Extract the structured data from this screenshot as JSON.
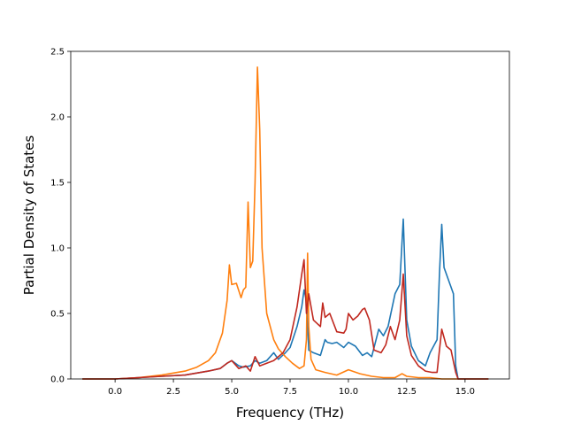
{
  "chart_data": {
    "type": "line",
    "title": "",
    "xlabel": "Frequency (THz)",
    "ylabel": "Partial Density of States",
    "xlim": [
      -1.9,
      16.9
    ],
    "ylim": [
      0.0,
      2.5
    ],
    "xticks": [
      0.0,
      2.5,
      5.0,
      7.5,
      10.0,
      12.5,
      15.0
    ],
    "xtick_labels": [
      "0.0",
      "2.5",
      "5.0",
      "7.5",
      "10.0",
      "12.5",
      "15.0"
    ],
    "yticks": [
      0.0,
      0.5,
      1.0,
      1.5,
      2.0,
      2.5
    ],
    "ytick_labels": [
      "0.0",
      "0.5",
      "1.0",
      "1.5",
      "2.0",
      "2.5"
    ],
    "grid": false,
    "legend": "none",
    "series": [
      {
        "color": "#1f77b4",
        "x": [
          -1.4,
          0.0,
          1.0,
          2.0,
          3.0,
          4.0,
          4.5,
          4.8,
          5.0,
          5.3,
          5.5,
          5.8,
          6.0,
          6.2,
          6.5,
          6.8,
          7.0,
          7.3,
          7.5,
          7.8,
          8.0,
          8.1,
          8.2,
          8.3,
          8.5,
          8.8,
          9.0,
          9.1,
          9.3,
          9.5,
          9.8,
          10.0,
          10.3,
          10.6,
          10.8,
          11.0,
          11.3,
          11.5,
          11.7,
          12.0,
          12.2,
          12.35,
          12.5,
          12.7,
          13.0,
          13.3,
          13.5,
          13.8,
          13.9,
          14.0,
          14.1,
          14.3,
          14.5,
          14.6,
          14.7,
          16.0
        ],
        "y": [
          0.0,
          0.0,
          0.01,
          0.02,
          0.03,
          0.06,
          0.08,
          0.12,
          0.14,
          0.1,
          0.09,
          0.1,
          0.14,
          0.12,
          0.14,
          0.2,
          0.15,
          0.2,
          0.24,
          0.4,
          0.55,
          0.68,
          0.6,
          0.22,
          0.2,
          0.18,
          0.3,
          0.28,
          0.27,
          0.28,
          0.24,
          0.28,
          0.25,
          0.18,
          0.2,
          0.17,
          0.38,
          0.33,
          0.4,
          0.65,
          0.72,
          1.22,
          0.45,
          0.25,
          0.14,
          0.1,
          0.2,
          0.3,
          0.8,
          1.18,
          0.85,
          0.75,
          0.65,
          0.1,
          0.0,
          0.0
        ]
      },
      {
        "color": "#ff7f0e",
        "x": [
          -1.4,
          0.0,
          1.0,
          2.0,
          3.0,
          3.5,
          4.0,
          4.3,
          4.6,
          4.8,
          4.9,
          5.0,
          5.2,
          5.4,
          5.5,
          5.6,
          5.7,
          5.8,
          5.9,
          6.0,
          6.1,
          6.2,
          6.3,
          6.5,
          6.8,
          7.0,
          7.3,
          7.6,
          7.9,
          8.1,
          8.2,
          8.25,
          8.3,
          8.4,
          8.6,
          9.0,
          9.5,
          10.0,
          10.5,
          11.0,
          11.5,
          12.0,
          12.3,
          12.5,
          13.0,
          13.5,
          14.0,
          14.5,
          15.0,
          16.0
        ],
        "y": [
          0.0,
          0.0,
          0.01,
          0.03,
          0.06,
          0.09,
          0.14,
          0.2,
          0.35,
          0.6,
          0.87,
          0.72,
          0.73,
          0.62,
          0.68,
          0.7,
          1.35,
          0.85,
          0.9,
          1.5,
          2.38,
          1.9,
          1.0,
          0.5,
          0.3,
          0.23,
          0.17,
          0.12,
          0.08,
          0.1,
          0.3,
          0.96,
          0.4,
          0.15,
          0.07,
          0.05,
          0.03,
          0.07,
          0.04,
          0.02,
          0.01,
          0.01,
          0.04,
          0.02,
          0.01,
          0.01,
          0.0,
          0.0,
          0.0,
          0.0
        ]
      },
      {
        "color": "#c0281f",
        "x": [
          -1.4,
          0.0,
          1.0,
          2.0,
          3.0,
          4.0,
          4.5,
          4.8,
          5.0,
          5.3,
          5.6,
          5.8,
          6.0,
          6.2,
          6.5,
          6.8,
          7.2,
          7.5,
          7.8,
          8.0,
          8.1,
          8.2,
          8.3,
          8.5,
          8.8,
          8.9,
          9.0,
          9.2,
          9.5,
          9.8,
          9.9,
          10.0,
          10.2,
          10.4,
          10.6,
          10.7,
          10.9,
          11.1,
          11.4,
          11.6,
          11.8,
          12.0,
          12.2,
          12.35,
          12.5,
          12.7,
          13.0,
          13.3,
          13.6,
          13.8,
          14.0,
          14.2,
          14.4,
          14.6,
          14.7,
          16.0
        ],
        "y": [
          0.0,
          0.0,
          0.01,
          0.02,
          0.03,
          0.06,
          0.08,
          0.12,
          0.14,
          0.08,
          0.1,
          0.06,
          0.17,
          0.1,
          0.12,
          0.14,
          0.2,
          0.3,
          0.55,
          0.8,
          0.91,
          0.5,
          0.65,
          0.45,
          0.4,
          0.58,
          0.47,
          0.5,
          0.36,
          0.35,
          0.38,
          0.5,
          0.45,
          0.48,
          0.53,
          0.54,
          0.45,
          0.22,
          0.2,
          0.26,
          0.4,
          0.3,
          0.45,
          0.8,
          0.33,
          0.18,
          0.1,
          0.06,
          0.05,
          0.05,
          0.38,
          0.25,
          0.22,
          0.05,
          0.0,
          0.0
        ]
      }
    ]
  }
}
